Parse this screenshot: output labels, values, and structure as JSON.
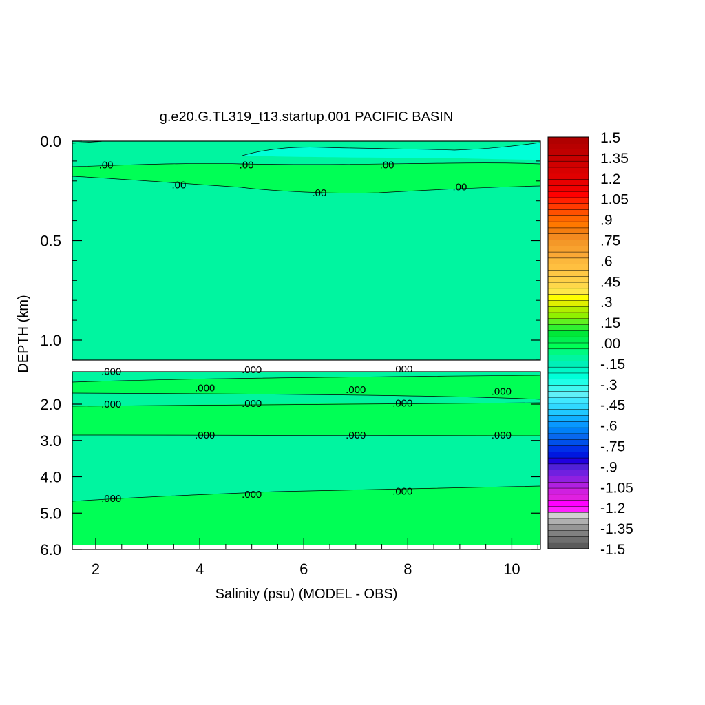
{
  "chart_data": {
    "type": "contour",
    "title": "g.e20.G.TL319_t13.startup.001 PACIFIC BASIN",
    "xlabel": "Salinity (psu) (MODEL - OBS)",
    "ylabel": "DEPTH (km)",
    "x_ticks": [
      "2",
      "4",
      "6",
      "8",
      "10"
    ],
    "x_tick_values": [
      2,
      4,
      6,
      8,
      10
    ],
    "xlim": [
      1.55,
      10.55
    ],
    "panels": [
      {
        "name": "upper",
        "ylim": [
          0.0,
          1.1
        ],
        "y_ticks": [
          "0.0",
          "0.5",
          "1.0"
        ],
        "y_tick_values": [
          0.0,
          0.5,
          1.0
        ],
        "contour_labels": [
          {
            "text": ".00",
            "x": 2.2,
            "y": 0.12
          },
          {
            "text": ".00",
            "x": 4.9,
            "y": 0.12
          },
          {
            "text": ".00",
            "x": 7.6,
            "y": 0.12
          },
          {
            "text": ".00",
            "x": 3.6,
            "y": 0.22
          },
          {
            "text": ".00",
            "x": 6.3,
            "y": 0.26
          },
          {
            "text": ".00",
            "x": 9.0,
            "y": 0.23
          }
        ]
      },
      {
        "name": "lower",
        "ylim": [
          1.0,
          6.0
        ],
        "y_ticks": [
          "2.0",
          "3.0",
          "4.0",
          "5.0",
          "6.0"
        ],
        "y_tick_values": [
          2.0,
          3.0,
          4.0,
          5.0,
          6.0
        ],
        "contour_labels": [
          {
            "text": ".000",
            "x": 2.3,
            "y": 1.1
          },
          {
            "text": ".000",
            "x": 5.0,
            "y": 1.05
          },
          {
            "text": ".000",
            "x": 7.9,
            "y": 1.03
          },
          {
            "text": ".000",
            "x": 4.1,
            "y": 1.55
          },
          {
            "text": ".000",
            "x": 7.0,
            "y": 1.6
          },
          {
            "text": ".000",
            "x": 9.8,
            "y": 1.65
          },
          {
            "text": ".000",
            "x": 2.3,
            "y": 2.0
          },
          {
            "text": ".000",
            "x": 5.0,
            "y": 1.98
          },
          {
            "text": ".000",
            "x": 7.9,
            "y": 1.97
          },
          {
            "text": ".000",
            "x": 4.1,
            "y": 2.85
          },
          {
            "text": ".000",
            "x": 7.0,
            "y": 2.85
          },
          {
            "text": ".000",
            "x": 9.8,
            "y": 2.85
          },
          {
            "text": ".000",
            "x": 2.3,
            "y": 4.6
          },
          {
            "text": ".000",
            "x": 5.0,
            "y": 4.48
          },
          {
            "text": ".000",
            "x": 7.9,
            "y": 4.4
          }
        ]
      }
    ],
    "colorbar": {
      "range": [
        -1.5,
        1.5
      ],
      "step": 0.05,
      "tick_labels": [
        "1.5",
        "1.35",
        "1.2",
        "1.05",
        ".9",
        ".75",
        ".6",
        ".45",
        ".3",
        ".15",
        ".00",
        "-.15",
        "-.3",
        "-.45",
        "-.6",
        "-.75",
        "-.9",
        "-1.05",
        "-1.2",
        "-1.35",
        "-1.5"
      ],
      "colors_top_to_bottom": [
        "#b00000",
        "#b80000",
        "#c00000",
        "#c80000",
        "#d00000",
        "#d80000",
        "#e00000",
        "#e80000",
        "#f00000",
        "#ff0000",
        "#ff2000",
        "#ff3a00",
        "#ff5000",
        "#ff6600",
        "#ff7800",
        "#f47d10",
        "#f48a20",
        "#f49828",
        "#f8a22e",
        "#faa835",
        "#fcb83c",
        "#ffc040",
        "#ffc845",
        "#ffd048",
        "#ffd84a",
        "#ffe848",
        "#ffff00",
        "#e0f000",
        "#b0ee00",
        "#90f000",
        "#60f020",
        "#30f030",
        "#00e838",
        "#00f050",
        "#00ff55",
        "#00fa80",
        "#00f5a0",
        "#00f0b8",
        "#00f8c8",
        "#00ffd8",
        "#20ffe8",
        "#40f8f0",
        "#60f0f8",
        "#40e8ff",
        "#30d8ff",
        "#20c8ff",
        "#10b0ff",
        "#0898ff",
        "#0080f8",
        "#0868ef",
        "#0050ea",
        "#0030e8",
        "#0018e0",
        "#2000e0",
        "#5020d8",
        "#7020e0",
        "#9020e0",
        "#b020e0",
        "#d020e0",
        "#e020e0",
        "#ff00ff",
        "#ff20ff",
        "#d0d0d0",
        "#b0b0b0",
        "#969696",
        "#808080",
        "#6e6e6e",
        "#5a5a5a"
      ]
    },
    "field_colors": {
      "near_zero_negative": "#00f5a0",
      "near_zero_positive": "#00ff55",
      "slight_negative": "#00ffd8",
      "outline": "#000000"
    }
  }
}
